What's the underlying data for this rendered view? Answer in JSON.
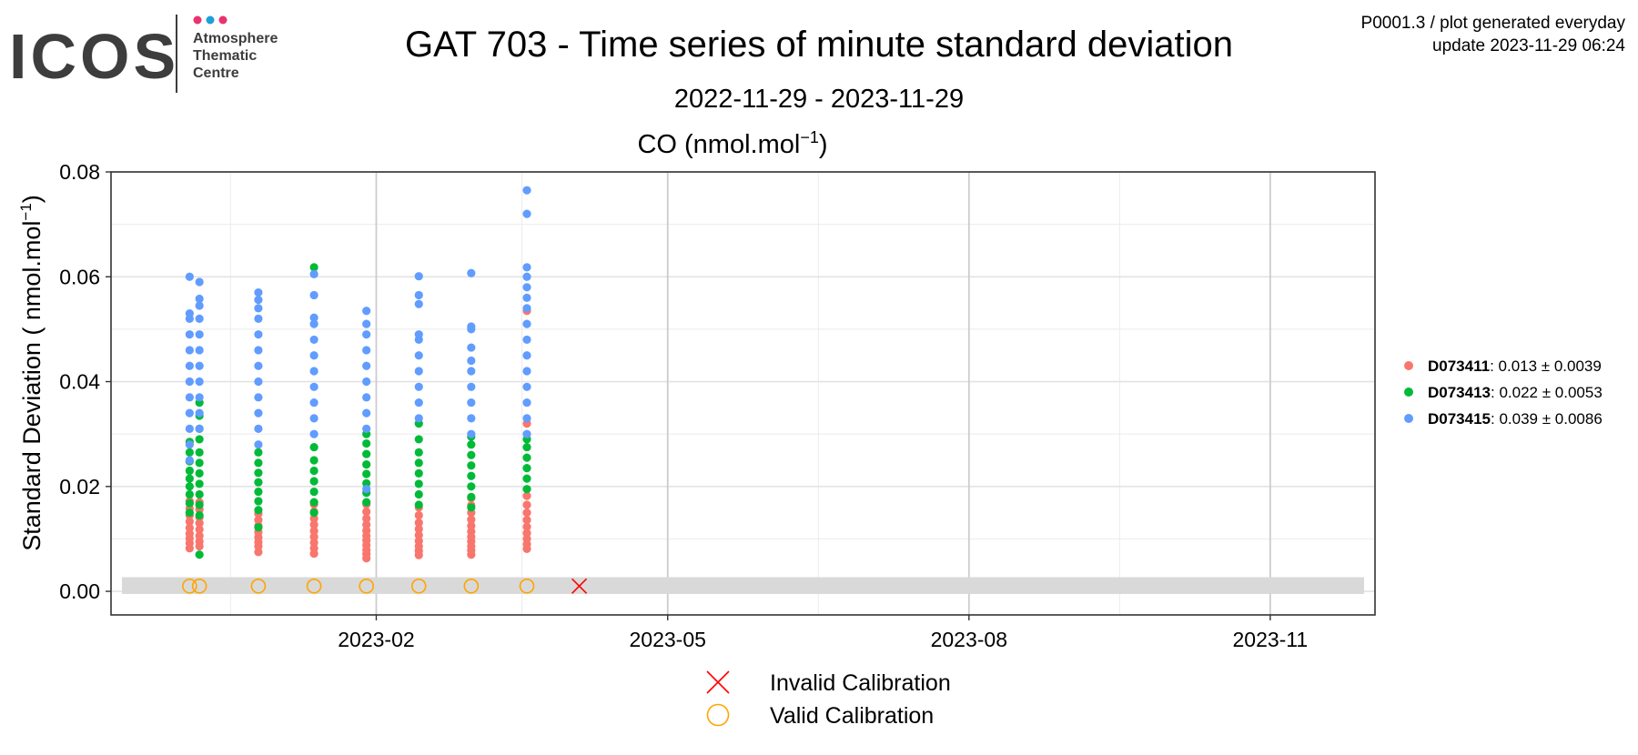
{
  "logo": {
    "wordmark": "ICOS",
    "line1": "Atmosphere",
    "line2": "Thematic",
    "line3": "Centre",
    "dot_colors": [
      "#e8336f",
      "#1e9fdc",
      "#e8336f"
    ]
  },
  "header": {
    "title": "GAT 703 - Time series of minute standard deviation",
    "date_range": "2022-11-29 - 2023-11-29",
    "plot_id": "P0001.3 / plot generated everyday",
    "update": "update  2023-11-29 06:24"
  },
  "chart_data": {
    "type": "scatter",
    "title": "CO (nmol.mol",
    "title_superscript": "−1",
    "title_suffix": ")",
    "ylabel": "Standard Deviation ( nmol.mol",
    "ylabel_superscript": "−1",
    "ylabel_suffix": ")",
    "xlabel": "",
    "ylim": [
      -0.0045,
      0.08
    ],
    "xlim": [
      "2022-11-12",
      "2023-12-03"
    ],
    "y_ticks": [
      {
        "value": 0.0,
        "label": "0.00"
      },
      {
        "value": 0.02,
        "label": "0.02"
      },
      {
        "value": 0.04,
        "label": "0.04"
      },
      {
        "value": 0.06,
        "label": "0.06"
      },
      {
        "value": 0.08,
        "label": "0.08"
      }
    ],
    "x_ticks": [
      {
        "value": "2023-02-01",
        "label": "2023-02"
      },
      {
        "value": "2023-05-01",
        "label": "2023-05"
      },
      {
        "value": "2023-08-01",
        "label": "2023-08"
      },
      {
        "value": "2023-11-01",
        "label": "2023-11"
      }
    ],
    "grid": true,
    "legend_position": "right",
    "series": [
      {
        "id": "D073411",
        "stats": ": 0.013 ± 0.0039",
        "color": "#f8766d",
        "points": [
          [
            "2022-12-06",
            0.0082
          ],
          [
            "2022-12-06",
            0.0092
          ],
          [
            "2022-12-06",
            0.0101
          ],
          [
            "2022-12-06",
            0.011
          ],
          [
            "2022-12-06",
            0.0121
          ],
          [
            "2022-12-06",
            0.0133
          ],
          [
            "2022-12-06",
            0.0145
          ],
          [
            "2022-12-06",
            0.0158
          ],
          [
            "2022-12-06",
            0.0172
          ],
          [
            "2022-12-09",
            0.0086
          ],
          [
            "2022-12-09",
            0.0095
          ],
          [
            "2022-12-09",
            0.0106
          ],
          [
            "2022-12-09",
            0.0118
          ],
          [
            "2022-12-09",
            0.013
          ],
          [
            "2022-12-09",
            0.0141
          ],
          [
            "2022-12-09",
            0.0156
          ],
          [
            "2022-12-09",
            0.017
          ],
          [
            "2022-12-27",
            0.0075
          ],
          [
            "2022-12-27",
            0.0086
          ],
          [
            "2022-12-27",
            0.0094
          ],
          [
            "2022-12-27",
            0.0103
          ],
          [
            "2022-12-27",
            0.0113
          ],
          [
            "2022-12-27",
            0.0125
          ],
          [
            "2022-12-27",
            0.0136
          ],
          [
            "2022-12-27",
            0.0148
          ],
          [
            "2023-01-13",
            0.0072
          ],
          [
            "2023-01-13",
            0.0082
          ],
          [
            "2023-01-13",
            0.0093
          ],
          [
            "2023-01-13",
            0.0104
          ],
          [
            "2023-01-13",
            0.0115
          ],
          [
            "2023-01-13",
            0.0127
          ],
          [
            "2023-01-13",
            0.0139
          ],
          [
            "2023-01-13",
            0.0152
          ],
          [
            "2023-01-13",
            0.0166
          ],
          [
            "2023-01-29",
            0.0063
          ],
          [
            "2023-01-29",
            0.0071
          ],
          [
            "2023-01-29",
            0.0079
          ],
          [
            "2023-01-29",
            0.0088
          ],
          [
            "2023-01-29",
            0.0097
          ],
          [
            "2023-01-29",
            0.0106
          ],
          [
            "2023-01-29",
            0.0116
          ],
          [
            "2023-01-29",
            0.0127
          ],
          [
            "2023-01-29",
            0.0139
          ],
          [
            "2023-01-29",
            0.0152
          ],
          [
            "2023-01-29",
            0.0166
          ],
          [
            "2023-02-14",
            0.0069
          ],
          [
            "2023-02-14",
            0.0077
          ],
          [
            "2023-02-14",
            0.0086
          ],
          [
            "2023-02-14",
            0.0096
          ],
          [
            "2023-02-14",
            0.0107
          ],
          [
            "2023-02-14",
            0.0119
          ],
          [
            "2023-02-14",
            0.0131
          ],
          [
            "2023-02-14",
            0.0145
          ],
          [
            "2023-02-14",
            0.016
          ],
          [
            "2023-03-02",
            0.007
          ],
          [
            "2023-03-02",
            0.0078
          ],
          [
            "2023-03-02",
            0.0086
          ],
          [
            "2023-03-02",
            0.0095
          ],
          [
            "2023-03-02",
            0.0104
          ],
          [
            "2023-03-02",
            0.0114
          ],
          [
            "2023-03-02",
            0.0125
          ],
          [
            "2023-03-02",
            0.0137
          ],
          [
            "2023-03-02",
            0.015
          ],
          [
            "2023-03-02",
            0.0164
          ],
          [
            "2023-03-02",
            0.0178
          ],
          [
            "2023-03-19",
            0.0081
          ],
          [
            "2023-03-19",
            0.009
          ],
          [
            "2023-03-19",
            0.01
          ],
          [
            "2023-03-19",
            0.0111
          ],
          [
            "2023-03-19",
            0.0123
          ],
          [
            "2023-03-19",
            0.0136
          ],
          [
            "2023-03-19",
            0.015
          ],
          [
            "2023-03-19",
            0.0165
          ],
          [
            "2023-03-19",
            0.0182
          ],
          [
            "2023-03-19",
            0.032
          ],
          [
            "2023-03-19",
            0.0535
          ]
        ]
      },
      {
        "id": "D073413",
        "stats": ": 0.022 ± 0.0053",
        "color": "#00ba38",
        "points": [
          [
            "2022-12-06",
            0.015
          ],
          [
            "2022-12-06",
            0.0168
          ],
          [
            "2022-12-06",
            0.0185
          ],
          [
            "2022-12-06",
            0.02
          ],
          [
            "2022-12-06",
            0.0215
          ],
          [
            "2022-12-06",
            0.023
          ],
          [
            "2022-12-06",
            0.0248
          ],
          [
            "2022-12-06",
            0.0265
          ],
          [
            "2022-12-06",
            0.0285
          ],
          [
            "2022-12-09",
            0.007
          ],
          [
            "2022-12-09",
            0.0145
          ],
          [
            "2022-12-09",
            0.0165
          ],
          [
            "2022-12-09",
            0.0185
          ],
          [
            "2022-12-09",
            0.0205
          ],
          [
            "2022-12-09",
            0.0225
          ],
          [
            "2022-12-09",
            0.0245
          ],
          [
            "2022-12-09",
            0.0265
          ],
          [
            "2022-12-09",
            0.029
          ],
          [
            "2022-12-09",
            0.031
          ],
          [
            "2022-12-09",
            0.0335
          ],
          [
            "2022-12-09",
            0.036
          ],
          [
            "2022-12-27",
            0.0122
          ],
          [
            "2022-12-27",
            0.0155
          ],
          [
            "2022-12-27",
            0.0172
          ],
          [
            "2022-12-27",
            0.019
          ],
          [
            "2022-12-27",
            0.0208
          ],
          [
            "2022-12-27",
            0.0226
          ],
          [
            "2022-12-27",
            0.0245
          ],
          [
            "2022-12-27",
            0.0265
          ],
          [
            "2023-01-13",
            0.015
          ],
          [
            "2023-01-13",
            0.017
          ],
          [
            "2023-01-13",
            0.019
          ],
          [
            "2023-01-13",
            0.021
          ],
          [
            "2023-01-13",
            0.023
          ],
          [
            "2023-01-13",
            0.025
          ],
          [
            "2023-01-13",
            0.0275
          ],
          [
            "2023-01-13",
            0.0618
          ],
          [
            "2023-01-29",
            0.017
          ],
          [
            "2023-01-29",
            0.0188
          ],
          [
            "2023-01-29",
            0.0206
          ],
          [
            "2023-01-29",
            0.0224
          ],
          [
            "2023-01-29",
            0.0242
          ],
          [
            "2023-01-29",
            0.0262
          ],
          [
            "2023-01-29",
            0.0282
          ],
          [
            "2023-01-29",
            0.03
          ],
          [
            "2023-02-14",
            0.0165
          ],
          [
            "2023-02-14",
            0.0185
          ],
          [
            "2023-02-14",
            0.0205
          ],
          [
            "2023-02-14",
            0.0225
          ],
          [
            "2023-02-14",
            0.0245
          ],
          [
            "2023-02-14",
            0.0265
          ],
          [
            "2023-02-14",
            0.029
          ],
          [
            "2023-02-14",
            0.032
          ],
          [
            "2023-03-02",
            0.016
          ],
          [
            "2023-03-02",
            0.018
          ],
          [
            "2023-03-02",
            0.02
          ],
          [
            "2023-03-02",
            0.022
          ],
          [
            "2023-03-02",
            0.024
          ],
          [
            "2023-03-02",
            0.026
          ],
          [
            "2023-03-02",
            0.028
          ],
          [
            "2023-03-02",
            0.0295
          ],
          [
            "2023-03-19",
            0.0195
          ],
          [
            "2023-03-19",
            0.0215
          ],
          [
            "2023-03-19",
            0.0235
          ],
          [
            "2023-03-19",
            0.0255
          ],
          [
            "2023-03-19",
            0.0275
          ],
          [
            "2023-03-19",
            0.029
          ]
        ]
      },
      {
        "id": "D073415",
        "stats": ": 0.039 ± 0.0086",
        "color": "#619cff",
        "points": [
          [
            "2022-12-06",
            0.025
          ],
          [
            "2022-12-06",
            0.028
          ],
          [
            "2022-12-06",
            0.031
          ],
          [
            "2022-12-06",
            0.034
          ],
          [
            "2022-12-06",
            0.037
          ],
          [
            "2022-12-06",
            0.04
          ],
          [
            "2022-12-06",
            0.043
          ],
          [
            "2022-12-06",
            0.046
          ],
          [
            "2022-12-06",
            0.049
          ],
          [
            "2022-12-06",
            0.052
          ],
          [
            "2022-12-06",
            0.053
          ],
          [
            "2022-12-06",
            0.06
          ],
          [
            "2022-12-09",
            0.031
          ],
          [
            "2022-12-09",
            0.034
          ],
          [
            "2022-12-09",
            0.037
          ],
          [
            "2022-12-09",
            0.04
          ],
          [
            "2022-12-09",
            0.043
          ],
          [
            "2022-12-09",
            0.046
          ],
          [
            "2022-12-09",
            0.049
          ],
          [
            "2022-12-09",
            0.052
          ],
          [
            "2022-12-09",
            0.0545
          ],
          [
            "2022-12-09",
            0.0558
          ],
          [
            "2022-12-09",
            0.059
          ],
          [
            "2022-12-27",
            0.028
          ],
          [
            "2022-12-27",
            0.031
          ],
          [
            "2022-12-27",
            0.034
          ],
          [
            "2022-12-27",
            0.037
          ],
          [
            "2022-12-27",
            0.04
          ],
          [
            "2022-12-27",
            0.043
          ],
          [
            "2022-12-27",
            0.046
          ],
          [
            "2022-12-27",
            0.049
          ],
          [
            "2022-12-27",
            0.052
          ],
          [
            "2022-12-27",
            0.054
          ],
          [
            "2022-12-27",
            0.0556
          ],
          [
            "2022-12-27",
            0.057
          ],
          [
            "2023-01-13",
            0.03
          ],
          [
            "2023-01-13",
            0.033
          ],
          [
            "2023-01-13",
            0.036
          ],
          [
            "2023-01-13",
            0.039
          ],
          [
            "2023-01-13",
            0.042
          ],
          [
            "2023-01-13",
            0.045
          ],
          [
            "2023-01-13",
            0.048
          ],
          [
            "2023-01-13",
            0.051
          ],
          [
            "2023-01-13",
            0.0522
          ],
          [
            "2023-01-13",
            0.0565
          ],
          [
            "2023-01-13",
            0.0605
          ],
          [
            "2023-01-29",
            0.0195
          ],
          [
            "2023-01-29",
            0.031
          ],
          [
            "2023-01-29",
            0.034
          ],
          [
            "2023-01-29",
            0.037
          ],
          [
            "2023-01-29",
            0.04
          ],
          [
            "2023-01-29",
            0.043
          ],
          [
            "2023-01-29",
            0.046
          ],
          [
            "2023-01-29",
            0.049
          ],
          [
            "2023-01-29",
            0.051
          ],
          [
            "2023-01-29",
            0.0535
          ],
          [
            "2023-02-14",
            0.033
          ],
          [
            "2023-02-14",
            0.036
          ],
          [
            "2023-02-14",
            0.039
          ],
          [
            "2023-02-14",
            0.042
          ],
          [
            "2023-02-14",
            0.045
          ],
          [
            "2023-02-14",
            0.048
          ],
          [
            "2023-02-14",
            0.049
          ],
          [
            "2023-02-14",
            0.0548
          ],
          [
            "2023-02-14",
            0.0565
          ],
          [
            "2023-02-14",
            0.0601
          ],
          [
            "2023-03-02",
            0.03
          ],
          [
            "2023-03-02",
            0.033
          ],
          [
            "2023-03-02",
            0.036
          ],
          [
            "2023-03-02",
            0.039
          ],
          [
            "2023-03-02",
            0.042
          ],
          [
            "2023-03-02",
            0.044
          ],
          [
            "2023-03-02",
            0.0465
          ],
          [
            "2023-03-02",
            0.05
          ],
          [
            "2023-03-02",
            0.0505
          ],
          [
            "2023-03-02",
            0.0607
          ],
          [
            "2023-03-19",
            0.03
          ],
          [
            "2023-03-19",
            0.033
          ],
          [
            "2023-03-19",
            0.036
          ],
          [
            "2023-03-19",
            0.039
          ],
          [
            "2023-03-19",
            0.042
          ],
          [
            "2023-03-19",
            0.045
          ],
          [
            "2023-03-19",
            0.048
          ],
          [
            "2023-03-19",
            0.051
          ],
          [
            "2023-03-19",
            0.054
          ],
          [
            "2023-03-19",
            0.056
          ],
          [
            "2023-03-19",
            0.058
          ],
          [
            "2023-03-19",
            0.06
          ],
          [
            "2023-03-19",
            0.0618
          ],
          [
            "2023-03-19",
            0.072
          ],
          [
            "2023-03-19",
            0.0765
          ]
        ]
      }
    ],
    "calibrations": [
      {
        "date": "2022-12-06",
        "y": 0.001,
        "status": "valid"
      },
      {
        "date": "2022-12-09",
        "y": 0.001,
        "status": "valid"
      },
      {
        "date": "2022-12-27",
        "y": 0.001,
        "status": "valid"
      },
      {
        "date": "2023-01-13",
        "y": 0.001,
        "status": "valid"
      },
      {
        "date": "2023-01-29",
        "y": 0.001,
        "status": "valid"
      },
      {
        "date": "2023-02-14",
        "y": 0.001,
        "status": "valid"
      },
      {
        "date": "2023-03-02",
        "y": 0.001,
        "status": "valid"
      },
      {
        "date": "2023-03-19",
        "y": 0.001,
        "status": "valid"
      },
      {
        "date": "2023-04-04",
        "y": 0.001,
        "status": "invalid"
      }
    ],
    "calibration_band": {
      "y_min": -0.0005,
      "y_max": 0.0027,
      "color": "#d9d9d9"
    },
    "calibration_legend": {
      "invalid_label": "Invalid Calibration",
      "valid_label": "Valid Calibration",
      "invalid_color": "#ff0000",
      "valid_color": "#ffa500"
    }
  }
}
